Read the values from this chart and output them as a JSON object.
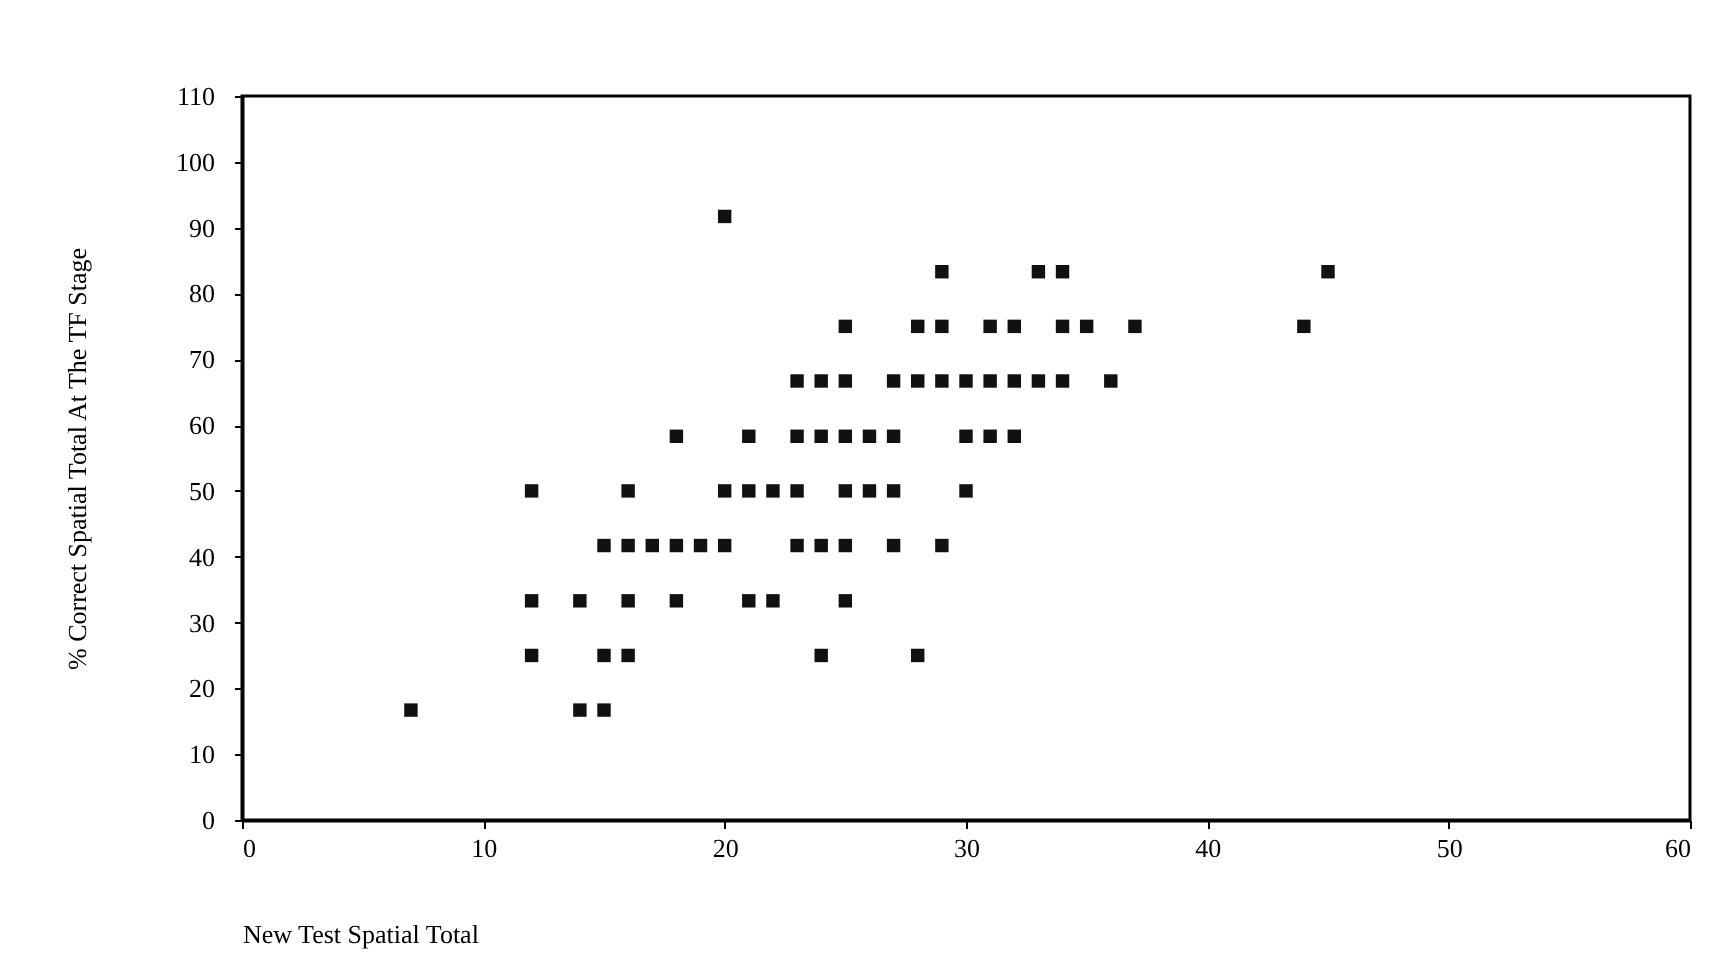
{
  "chart_data": {
    "type": "scatter",
    "xlabel": "New Test Spatial Total",
    "ylabel": "% Correct Spatial Total At The TF Stage",
    "x": [
      20,
      29,
      33,
      34,
      45,
      25,
      28,
      29,
      31,
      32,
      34,
      35,
      37,
      44,
      23,
      24,
      25,
      27,
      28,
      29,
      30,
      31,
      32,
      33,
      34,
      36,
      18,
      21,
      23,
      24,
      25,
      26,
      27,
      30,
      31,
      32,
      12,
      16,
      20,
      21,
      22,
      23,
      25,
      26,
      27,
      30,
      15,
      16,
      17,
      18,
      19,
      20,
      23,
      24,
      25,
      27,
      29,
      12,
      14,
      16,
      18,
      21,
      22,
      25,
      12,
      15,
      16,
      24,
      28,
      7,
      14,
      15
    ],
    "values": [
      91.7,
      83.3,
      83.3,
      83.3,
      83.3,
      75,
      75,
      75,
      75,
      75,
      75,
      75,
      75,
      75,
      66.7,
      66.7,
      66.7,
      66.7,
      66.7,
      66.7,
      66.7,
      66.7,
      66.7,
      66.7,
      66.7,
      66.7,
      58.3,
      58.3,
      58.3,
      58.3,
      58.3,
      58.3,
      58.3,
      58.3,
      58.3,
      58.3,
      50,
      50,
      50,
      50,
      50,
      50,
      50,
      50,
      50,
      50,
      41.7,
      41.7,
      41.7,
      41.7,
      41.7,
      41.7,
      41.7,
      41.7,
      41.7,
      41.7,
      41.7,
      33.3,
      33.3,
      33.3,
      33.3,
      33.3,
      33.3,
      33.3,
      25,
      25,
      25,
      25,
      25,
      16.7,
      16.7,
      16.7
    ],
    "color": "#111111",
    "marker": "square",
    "grid": false,
    "xlim": [
      0,
      60
    ],
    "xticks": [
      0,
      10,
      20,
      30,
      40,
      50,
      60
    ],
    "ylim": [
      0,
      110
    ],
    "yticks": [
      0,
      10,
      20,
      30,
      40,
      50,
      60,
      70,
      80,
      90,
      100,
      110
    ]
  }
}
